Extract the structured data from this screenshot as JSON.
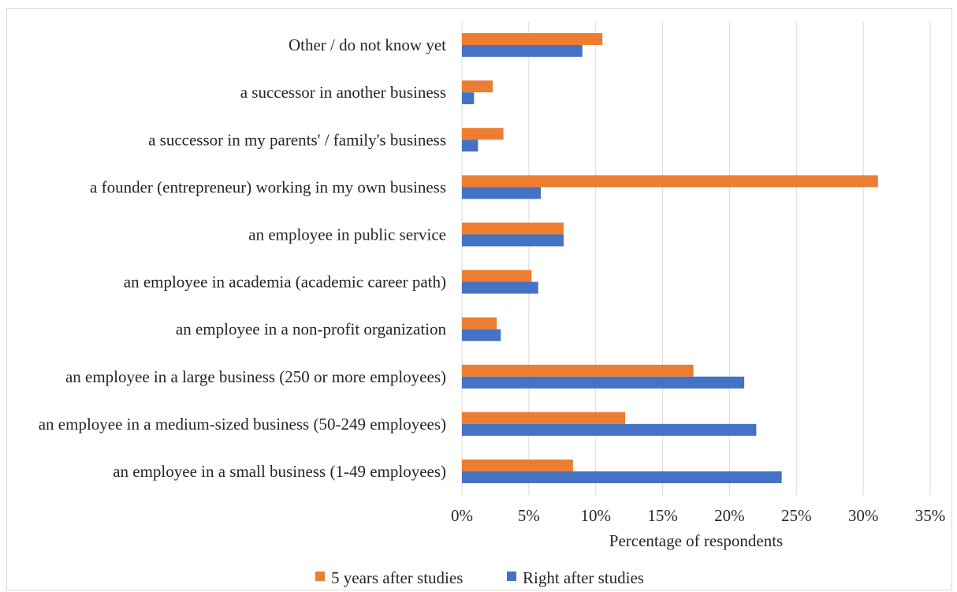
{
  "chart_data": {
    "type": "bar",
    "orientation": "horizontal",
    "categories": [
      "an employee in a small business (1-49 employees)",
      "an employee in a medium-sized business (50-249 employees)",
      "an employee in a large business (250 or more employees)",
      "an employee in a non-profit organization",
      "an employee in academia (academic career path)",
      "an employee in public service",
      "a founder (entrepreneur) working in my own business",
      "a successor in my parents' / family's business",
      "a successor in another business",
      "Other / do not know yet"
    ],
    "series": [
      {
        "name": "5 years after studies",
        "color": "#ED7D31",
        "values": [
          8.3,
          12.2,
          17.3,
          2.6,
          5.2,
          7.6,
          31.1,
          3.1,
          2.3,
          10.5
        ]
      },
      {
        "name": "Right after studies",
        "color": "#4472C4",
        "values": [
          23.9,
          22.0,
          21.1,
          2.9,
          5.7,
          7.6,
          5.9,
          1.2,
          0.9,
          9.0
        ]
      }
    ],
    "xlabel": "Percentage of respondents",
    "ylabel": "",
    "xlim": [
      0,
      35
    ],
    "x_ticks": [
      "0%",
      "5%",
      "10%",
      "15%",
      "20%",
      "25%",
      "30%",
      "35%"
    ],
    "grid": true,
    "legend_position": "bottom"
  }
}
